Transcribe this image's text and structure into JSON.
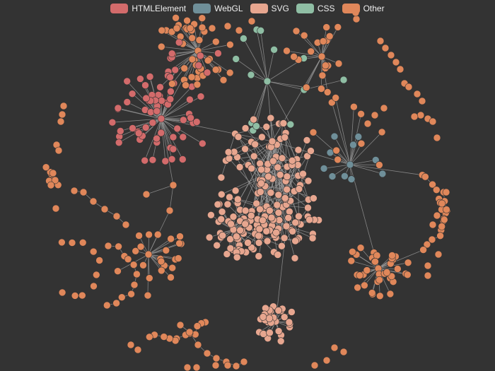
{
  "legend": [
    {
      "label": "HTMLElement",
      "color": "#d36b6b"
    },
    {
      "label": "WebGL",
      "color": "#6f8f99"
    },
    {
      "label": "SVG",
      "color": "#e7a68f"
    },
    {
      "label": "CSS",
      "color": "#8fbea4"
    },
    {
      "label": "Other",
      "color": "#e0875a"
    }
  ],
  "graph": {
    "background": "#333333",
    "link_color": "#9a9a9a",
    "node_counts": {
      "HTMLElement": 72,
      "WebGL": 11,
      "SVG": 190,
      "CSS": 14,
      "Other": 240
    }
  }
}
